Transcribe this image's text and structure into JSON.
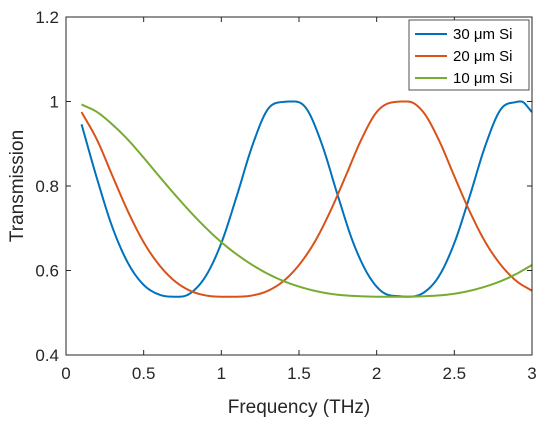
{
  "chart_data": {
    "type": "line",
    "title": "",
    "xlabel": "Frequency (THz)",
    "ylabel": "Transmission",
    "xlim": [
      0,
      3
    ],
    "ylim": [
      0.4,
      1.2
    ],
    "x_ticks": [
      0,
      0.5,
      1,
      1.5,
      2,
      2.5,
      3
    ],
    "x_tick_labels": [
      "0",
      "0.5",
      "1",
      "1.5",
      "2",
      "2.5",
      "3"
    ],
    "y_ticks": [
      0.4,
      0.6,
      0.8,
      1.0,
      1.2
    ],
    "y_tick_labels": [
      "0.4",
      "0.6",
      "0.8",
      "1",
      "1.2"
    ],
    "grid": false,
    "legend_position": "top-right",
    "series": [
      {
        "name": "30 μm Si",
        "color": "#0072BD",
        "x": [
          0.1,
          0.2,
          0.3,
          0.4,
          0.5,
          0.6,
          0.7,
          0.73,
          0.8,
          0.9,
          1.0,
          1.1,
          1.2,
          1.3,
          1.4,
          1.47,
          1.55,
          1.65,
          1.75,
          1.85,
          1.95,
          2.05,
          2.15,
          2.2,
          2.3,
          2.4,
          2.5,
          2.6,
          2.7,
          2.8,
          2.9,
          2.93,
          3.0
        ],
        "y": [
          0.946,
          0.817,
          0.701,
          0.617,
          0.566,
          0.543,
          0.538,
          0.538,
          0.546,
          0.587,
          0.665,
          0.777,
          0.896,
          0.982,
          0.999,
          1.0,
          0.982,
          0.896,
          0.777,
          0.665,
          0.587,
          0.546,
          0.539,
          0.538,
          0.547,
          0.586,
          0.665,
          0.777,
          0.896,
          0.982,
          0.999,
          1.0,
          0.975
        ]
      },
      {
        "name": "20 μm Si",
        "color": "#D95319",
        "x": [
          0.1,
          0.2,
          0.3,
          0.4,
          0.5,
          0.6,
          0.7,
          0.8,
          0.9,
          1.0,
          1.1,
          1.2,
          1.3,
          1.4,
          1.5,
          1.6,
          1.7,
          1.8,
          1.9,
          2.0,
          2.1,
          2.2,
          2.3,
          2.4,
          2.5,
          2.6,
          2.7,
          2.8,
          2.9,
          3.0
        ],
        "y": [
          0.975,
          0.909,
          0.823,
          0.739,
          0.667,
          0.613,
          0.575,
          0.552,
          0.541,
          0.538,
          0.538,
          0.541,
          0.552,
          0.575,
          0.613,
          0.667,
          0.739,
          0.823,
          0.909,
          0.975,
          0.998,
          1.0,
          0.975,
          0.909,
          0.823,
          0.739,
          0.667,
          0.613,
          0.575,
          0.552
        ]
      },
      {
        "name": "10 μm Si",
        "color": "#77AC30",
        "x": [
          0.1,
          0.2,
          0.3,
          0.4,
          0.5,
          0.6,
          0.7,
          0.8,
          0.9,
          1.0,
          1.1,
          1.2,
          1.3,
          1.4,
          1.5,
          1.6,
          1.7,
          1.8,
          1.9,
          2.0,
          2.1,
          2.2,
          2.3,
          2.4,
          2.5,
          2.6,
          2.7,
          2.8,
          2.9,
          3.0
        ],
        "y": [
          0.993,
          0.975,
          0.945,
          0.909,
          0.867,
          0.823,
          0.78,
          0.739,
          0.701,
          0.667,
          0.638,
          0.613,
          0.592,
          0.575,
          0.562,
          0.552,
          0.545,
          0.541,
          0.539,
          0.538,
          0.538,
          0.538,
          0.539,
          0.541,
          0.545,
          0.552,
          0.562,
          0.575,
          0.592,
          0.613
        ]
      }
    ]
  }
}
